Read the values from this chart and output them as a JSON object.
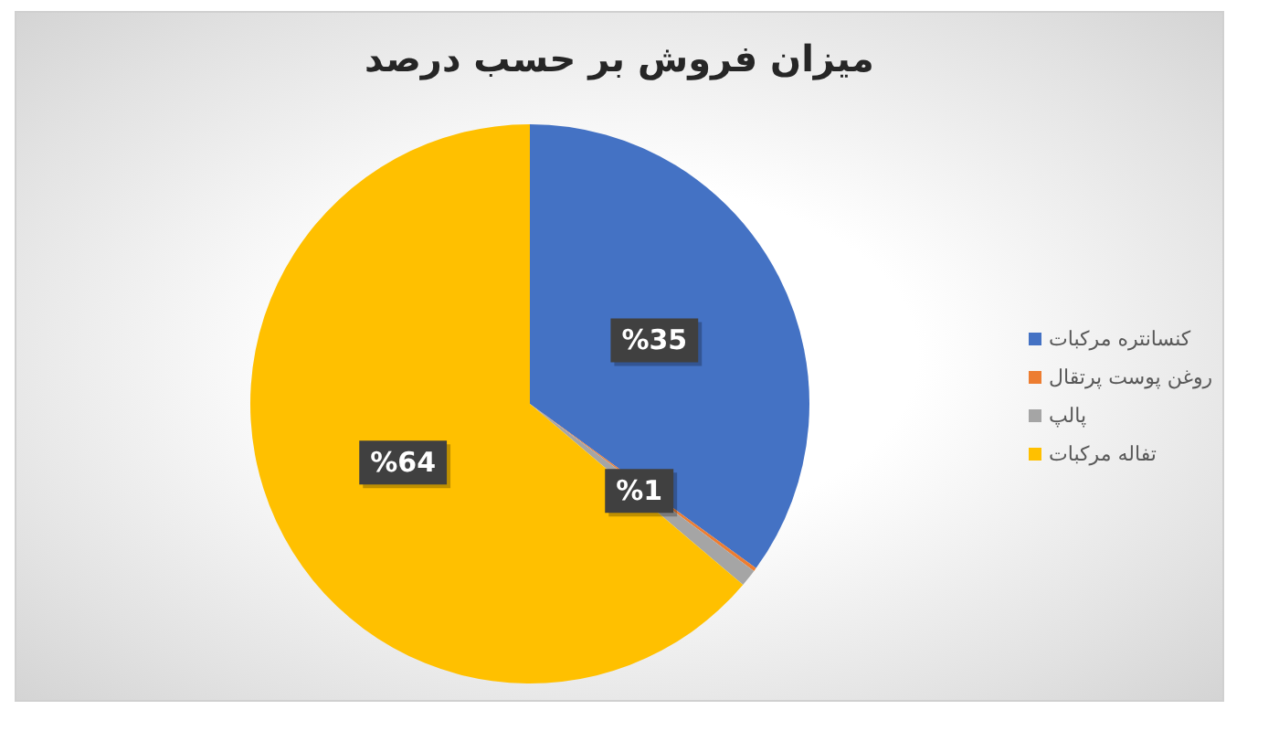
{
  "chart_data": {
    "type": "pie",
    "title": "میزان فروش بر حسب درصد",
    "categories": [
      "کنسانتره مرکبات",
      "روغن پوست پرتقال",
      "پالپ",
      "تفاله مرکبات"
    ],
    "values": [
      35,
      0.2,
      1,
      63.8
    ],
    "colors": [
      "#4472c4",
      "#ed7d31",
      "#a5a5a5",
      "#ffc000"
    ],
    "value_labels": [
      "%35",
      null,
      "%1",
      "%64"
    ],
    "legend": "right"
  }
}
